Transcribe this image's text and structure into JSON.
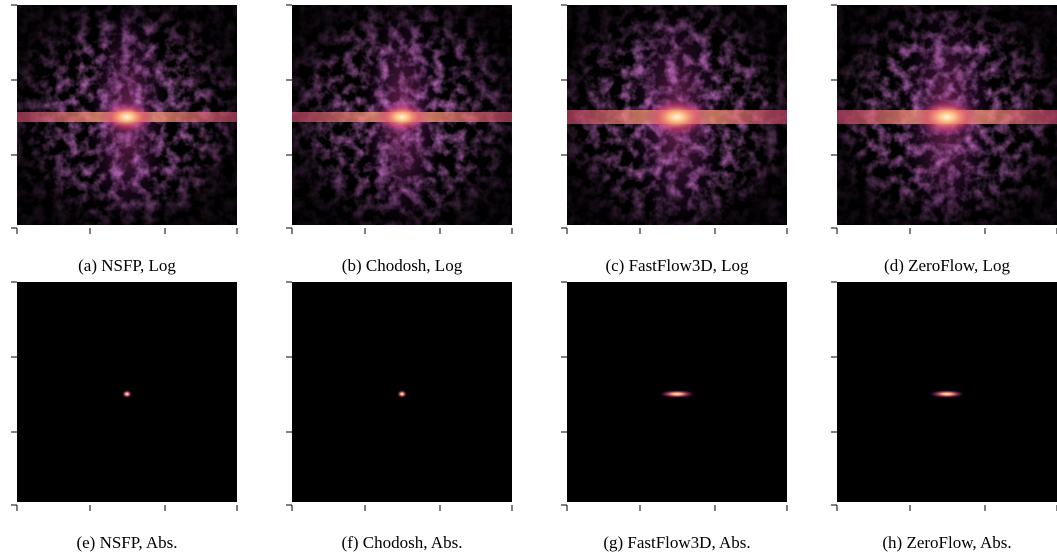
{
  "panels": [
    {
      "caption": "(a) NSFP, Log"
    },
    {
      "caption": "(b) Chodosh, Log"
    },
    {
      "caption": "(c) FastFlow3D, Log"
    },
    {
      "caption": "(d) ZeroFlow, Log"
    },
    {
      "caption": "(e) NSFP, Abs."
    },
    {
      "caption": "(f) Chodosh, Abs."
    },
    {
      "caption": "(g) FastFlow3D, Abs."
    },
    {
      "caption": "(h) ZeroFlow, Abs."
    }
  ]
}
